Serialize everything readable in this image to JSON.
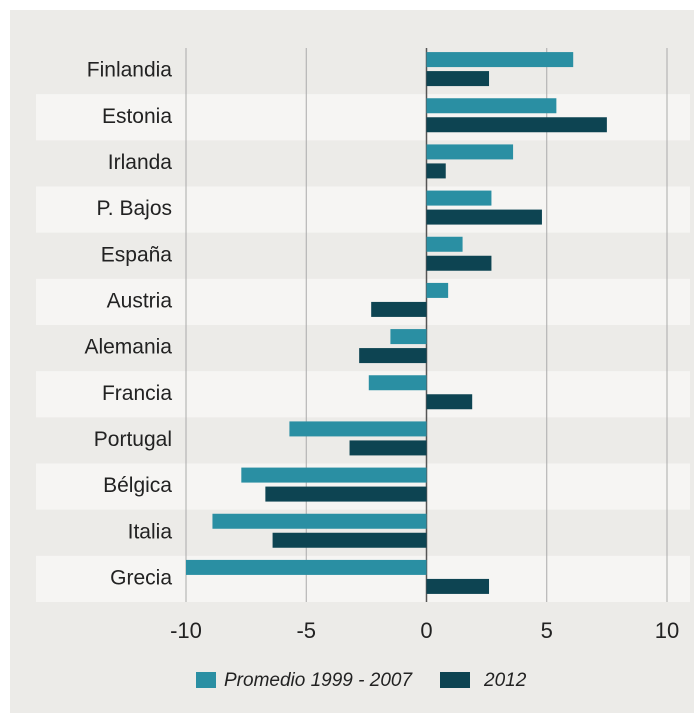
{
  "chart_data": {
    "type": "hbar",
    "categories": [
      "Finlandia",
      "Estonia",
      "Irlanda",
      "P. Bajos",
      "España",
      "Austria",
      "Alemania",
      "Francia",
      "Portugal",
      "Bélgica",
      "Italia",
      "Grecia"
    ],
    "series": [
      {
        "name": "Promedio 1999 - 2007",
        "color": "#2a8fa3",
        "values": [
          6.1,
          5.4,
          3.6,
          2.7,
          1.5,
          0.9,
          -1.5,
          -2.4,
          -5.7,
          -7.7,
          -8.9,
          -10.0
        ]
      },
      {
        "name": "2012",
        "color": "#0d4452",
        "values": [
          2.6,
          7.5,
          0.8,
          4.8,
          2.7,
          -2.3,
          -2.8,
          1.9,
          -3.2,
          -6.7,
          -6.4,
          2.6
        ]
      }
    ],
    "xlim": [
      -10,
      10
    ],
    "xticks": [
      -10,
      -5,
      0,
      5,
      10
    ],
    "grid": true,
    "legend": "bottom"
  }
}
